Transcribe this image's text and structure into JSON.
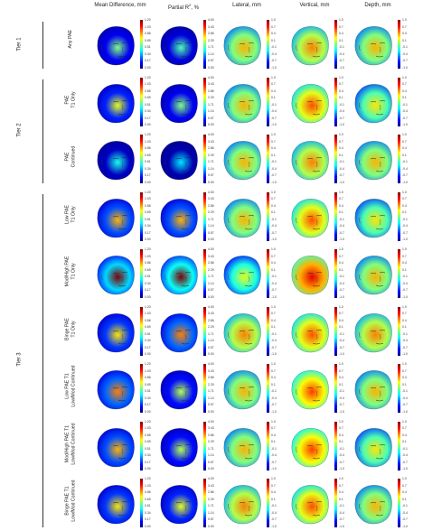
{
  "columns": [
    {
      "id": "mean",
      "label": "Mean Difference, mm",
      "scale": "seq",
      "ticks": [
        "1.20",
        "1.03",
        "0.86",
        "0.69",
        "0.51",
        "0.34",
        "0.17",
        "0.00"
      ]
    },
    {
      "id": "r2",
      "label_pre": "Partial R",
      "label_sup": "2",
      "label_post": ", %",
      "scale": "seq",
      "ticks": [
        "4.00",
        "3.43",
        "2.86",
        "2.29",
        "1.71",
        "1.14",
        "0.57",
        "0.00"
      ]
    },
    {
      "id": "lat",
      "label": "Lateral, mm",
      "scale": "div",
      "ticks": [
        "1.0",
        "0.7",
        "0.4",
        "0.1",
        "-0.1",
        "-0.4",
        "-0.7",
        "-1.0"
      ]
    },
    {
      "id": "vert",
      "label": "Vertical, mm",
      "scale": "div",
      "ticks": [
        "1.0",
        "0.7",
        "0.4",
        "0.1",
        "-0.1",
        "-0.4",
        "-0.7",
        "-1.0"
      ]
    },
    {
      "id": "depth",
      "label": "Depth, mm",
      "scale": "div",
      "ticks": [
        "1.0",
        "0.7",
        "0.4",
        "0.1",
        "-0.1",
        "-0.4",
        "-0.7",
        "-1.0"
      ]
    }
  ],
  "tiers": [
    {
      "label": "Tier 1",
      "rows": [
        0,
        0
      ]
    },
    {
      "label": "Tier 2",
      "rows": [
        1,
        2
      ]
    },
    {
      "label": "Tier 3",
      "rows": [
        3,
        8
      ]
    }
  ],
  "rows": [
    {
      "label": [
        "Any PAE"
      ],
      "levels": [
        0.25,
        0.2,
        0.5,
        0.55,
        0.5
      ]
    },
    {
      "label": [
        "PAE",
        "T1 Only"
      ],
      "levels": [
        0.35,
        0.25,
        0.5,
        0.6,
        0.45
      ]
    },
    {
      "label": [
        "PAE",
        "Continued"
      ],
      "levels": [
        0.15,
        0.1,
        0.5,
        0.55,
        0.5
      ]
    },
    {
      "label": [
        "Low PAE",
        "T1 Only"
      ],
      "levels": [
        0.45,
        0.45,
        0.5,
        0.6,
        0.45
      ]
    },
    {
      "label": [
        "Mod/High PAE",
        "T1 Only"
      ],
      "levels": [
        0.75,
        0.85,
        0.4,
        0.7,
        0.5
      ]
    },
    {
      "label": [
        "Binge PAE",
        "T1 Only"
      ],
      "levels": [
        0.4,
        0.5,
        0.55,
        0.6,
        0.55
      ]
    },
    {
      "label": [
        "Low PAE T1",
        "Low/Mod Continued"
      ],
      "levels": [
        0.5,
        0.3,
        0.5,
        0.62,
        0.5
      ]
    },
    {
      "label": [
        "Mod/High PAE T1",
        "Low/Mod Continued"
      ],
      "levels": [
        0.45,
        0.3,
        0.5,
        0.62,
        0.45
      ]
    },
    {
      "label": [
        "Binge PAE T1",
        "Low/Mod Continued"
      ],
      "levels": [
        0.4,
        0.35,
        0.55,
        0.6,
        0.5
      ]
    }
  ],
  "colors": {
    "jet": [
      "#00007f",
      "#0000ff",
      "#007fff",
      "#00ffff",
      "#7fff7f",
      "#ffff00",
      "#ff7f00",
      "#ff0000",
      "#7f0000"
    ]
  }
}
